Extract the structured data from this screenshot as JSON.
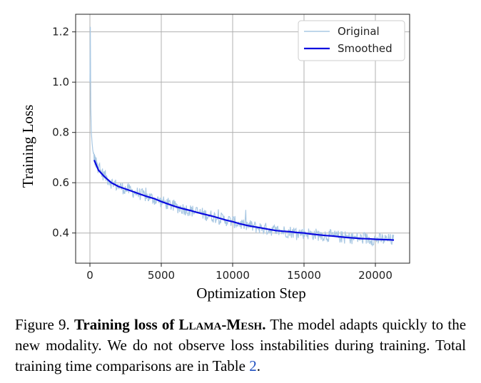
{
  "chart_data": {
    "type": "line",
    "xlabel": "Optimization Step",
    "ylabel": "Training Loss",
    "xlim": [
      -1000,
      22400
    ],
    "ylim": [
      0.28,
      1.27
    ],
    "x_ticks": [
      0,
      5000,
      10000,
      15000,
      20000
    ],
    "x_tick_labels": [
      "0",
      "5000",
      "10000",
      "15000",
      "20000"
    ],
    "y_ticks": [
      0.4,
      0.6,
      0.8,
      1.0,
      1.2
    ],
    "y_tick_labels": [
      "0.4",
      "0.6",
      "0.8",
      "1.0",
      "1.2"
    ],
    "grid": true,
    "legend_position": "top-right",
    "series": [
      {
        "name": "Original",
        "color": "#a9c8e3",
        "x": [
          0,
          30,
          60,
          100,
          150,
          200,
          300,
          400,
          600,
          800,
          1000,
          1500,
          2000,
          3000,
          4000,
          5000,
          6000,
          7000,
          8000,
          9000,
          10000,
          11000,
          12000,
          13000,
          14000,
          15000,
          16000,
          17000,
          18000,
          19000,
          20000,
          21000,
          21300
        ],
        "values": [
          1.0,
          1.22,
          0.9,
          0.8,
          0.76,
          0.73,
          0.7,
          0.68,
          0.66,
          0.64,
          0.63,
          0.6,
          0.585,
          0.565,
          0.545,
          0.525,
          0.505,
          0.49,
          0.475,
          0.46,
          0.445,
          0.43,
          0.42,
          0.41,
          0.405,
          0.4,
          0.393,
          0.388,
          0.382,
          0.378,
          0.375,
          0.373,
          0.372
        ],
        "noise_amplitude": 0.025
      },
      {
        "name": "Smoothed",
        "color": "#0a0adf",
        "x": [
          300,
          600,
          1000,
          1500,
          2000,
          2500,
          3000,
          3500,
          4000,
          4500,
          5000,
          5500,
          6000,
          6500,
          7000,
          7500,
          8000,
          8500,
          9000,
          9500,
          10000,
          10500,
          11000,
          11500,
          12000,
          12500,
          13000,
          13500,
          14000,
          14500,
          15000,
          15500,
          16000,
          16500,
          17000,
          17500,
          18000,
          18500,
          19000,
          19500,
          20000,
          20500,
          21000,
          21300
        ],
        "values": [
          0.69,
          0.65,
          0.625,
          0.6,
          0.585,
          0.575,
          0.565,
          0.555,
          0.545,
          0.537,
          0.525,
          0.515,
          0.505,
          0.497,
          0.49,
          0.482,
          0.475,
          0.468,
          0.46,
          0.452,
          0.445,
          0.437,
          0.43,
          0.425,
          0.42,
          0.415,
          0.41,
          0.407,
          0.405,
          0.402,
          0.4,
          0.396,
          0.393,
          0.39,
          0.388,
          0.385,
          0.382,
          0.38,
          0.378,
          0.377,
          0.375,
          0.374,
          0.373,
          0.372
        ]
      }
    ]
  },
  "caption": {
    "figure_label": "Figure 9.",
    "bold_prefix": "Training loss of ",
    "bold_name": "Llama-Mesh.",
    "text_1": " The model adapts quickly to the new modality. We do not observe loss instabilities during training. Total training time comparisons are in Table ",
    "table_ref": "2",
    "text_end": "."
  }
}
